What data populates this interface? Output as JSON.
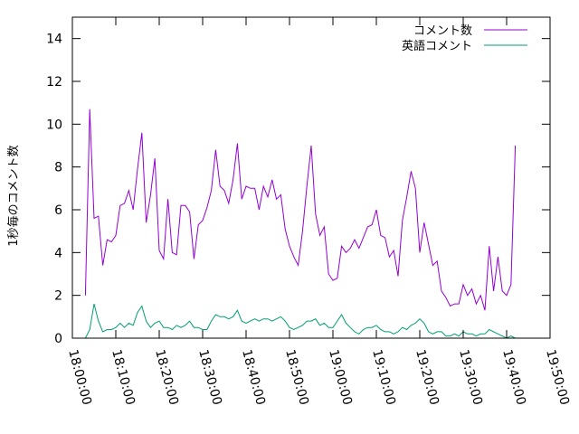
{
  "chart_data": {
    "type": "line",
    "title": "",
    "xlabel": "",
    "ylabel": "1秒毎のコメント数",
    "xlim": [
      "18:00:00",
      "19:50:00"
    ],
    "ylim": [
      0,
      15
    ],
    "xticks": [
      "18:00:00",
      "18:10:00",
      "18:20:00",
      "18:30:00",
      "18:40:00",
      "18:50:00",
      "19:00:00",
      "19:10:00",
      "19:20:00",
      "19:30:00",
      "19:40:00",
      "19:50:00"
    ],
    "yticks": [
      0,
      2,
      4,
      6,
      8,
      10,
      12,
      14
    ],
    "grid": false,
    "legend_position": "top-right",
    "colors": {
      "comments": "#9400d3",
      "english": "#009e73",
      "axes": "#000000"
    },
    "series": [
      {
        "name": "コメント数",
        "color": "#9400d3",
        "points": [
          [
            "18:03:00",
            2.0
          ],
          [
            "18:04:00",
            10.7
          ],
          [
            "18:05:00",
            5.6
          ],
          [
            "18:06:00",
            5.7
          ],
          [
            "18:07:00",
            3.4
          ],
          [
            "18:08:00",
            4.6
          ],
          [
            "18:09:00",
            4.5
          ],
          [
            "18:10:00",
            4.8
          ],
          [
            "18:11:00",
            6.2
          ],
          [
            "18:12:00",
            6.3
          ],
          [
            "18:13:00",
            6.9
          ],
          [
            "18:14:00",
            6.0
          ],
          [
            "18:15:00",
            7.9
          ],
          [
            "18:16:00",
            9.6
          ],
          [
            "18:17:00",
            5.4
          ],
          [
            "18:18:00",
            6.7
          ],
          [
            "18:19:00",
            8.4
          ],
          [
            "18:20:00",
            4.1
          ],
          [
            "18:21:00",
            3.7
          ],
          [
            "18:22:00",
            6.5
          ],
          [
            "18:23:00",
            4.0
          ],
          [
            "18:24:00",
            3.9
          ],
          [
            "18:25:00",
            6.2
          ],
          [
            "18:26:00",
            6.2
          ],
          [
            "18:27:00",
            5.9
          ],
          [
            "18:28:00",
            3.7
          ],
          [
            "18:29:00",
            5.3
          ],
          [
            "18:30:00",
            5.5
          ],
          [
            "18:31:00",
            6.1
          ],
          [
            "18:32:00",
            6.9
          ],
          [
            "18:33:00",
            8.8
          ],
          [
            "18:34:00",
            7.1
          ],
          [
            "18:35:00",
            6.9
          ],
          [
            "18:36:00",
            6.3
          ],
          [
            "18:37:00",
            7.4
          ],
          [
            "18:38:00",
            9.1
          ],
          [
            "18:39:00",
            6.5
          ],
          [
            "18:40:00",
            7.1
          ],
          [
            "18:41:00",
            7.0
          ],
          [
            "18:42:00",
            7.0
          ],
          [
            "18:43:00",
            6.0
          ],
          [
            "18:44:00",
            7.1
          ],
          [
            "18:45:00",
            6.6
          ],
          [
            "18:46:00",
            7.4
          ],
          [
            "18:47:00",
            6.5
          ],
          [
            "18:48:00",
            6.7
          ],
          [
            "18:49:00",
            5.1
          ],
          [
            "18:50:00",
            4.3
          ],
          [
            "18:51:00",
            3.8
          ],
          [
            "18:52:00",
            3.4
          ],
          [
            "18:53:00",
            5.0
          ],
          [
            "18:54:00",
            7.1
          ],
          [
            "18:55:00",
            9.0
          ],
          [
            "18:56:00",
            5.8
          ],
          [
            "18:57:00",
            4.8
          ],
          [
            "18:58:00",
            5.2
          ],
          [
            "18:59:00",
            3.0
          ],
          [
            "19:00:00",
            2.7
          ],
          [
            "19:01:00",
            2.8
          ],
          [
            "19:02:00",
            4.3
          ],
          [
            "19:03:00",
            4.0
          ],
          [
            "19:04:00",
            4.2
          ],
          [
            "19:05:00",
            4.6
          ],
          [
            "19:06:00",
            4.2
          ],
          [
            "19:07:00",
            4.7
          ],
          [
            "19:08:00",
            5.2
          ],
          [
            "19:09:00",
            5.3
          ],
          [
            "19:10:00",
            6.0
          ],
          [
            "19:11:00",
            4.8
          ],
          [
            "19:12:00",
            4.7
          ],
          [
            "19:13:00",
            3.8
          ],
          [
            "19:14:00",
            4.1
          ],
          [
            "19:15:00",
            2.9
          ],
          [
            "19:16:00",
            5.5
          ],
          [
            "19:17:00",
            6.6
          ],
          [
            "19:18:00",
            7.8
          ],
          [
            "19:19:00",
            7.0
          ],
          [
            "19:20:00",
            4.0
          ],
          [
            "19:21:00",
            5.4
          ],
          [
            "19:22:00",
            4.4
          ],
          [
            "19:23:00",
            3.4
          ],
          [
            "19:24:00",
            3.6
          ],
          [
            "19:25:00",
            2.2
          ],
          [
            "19:26:00",
            1.9
          ],
          [
            "19:27:00",
            1.5
          ],
          [
            "19:28:00",
            1.6
          ],
          [
            "19:29:00",
            1.6
          ],
          [
            "19:30:00",
            2.5
          ],
          [
            "19:31:00",
            2.0
          ],
          [
            "19:32:00",
            2.3
          ],
          [
            "19:33:00",
            1.6
          ],
          [
            "19:34:00",
            2.0
          ],
          [
            "19:35:00",
            1.3
          ],
          [
            "19:36:00",
            4.3
          ],
          [
            "19:37:00",
            2.2
          ],
          [
            "19:38:00",
            3.8
          ],
          [
            "19:39:00",
            2.2
          ],
          [
            "19:40:00",
            2.0
          ],
          [
            "19:41:00",
            2.5
          ],
          [
            "19:42:00",
            9.0
          ]
        ]
      },
      {
        "name": "英語コメント",
        "color": "#009e73",
        "points": [
          [
            "18:03:00",
            0.0
          ],
          [
            "18:04:00",
            0.4
          ],
          [
            "18:05:00",
            1.6
          ],
          [
            "18:06:00",
            0.8
          ],
          [
            "18:07:00",
            0.3
          ],
          [
            "18:08:00",
            0.4
          ],
          [
            "18:09:00",
            0.4
          ],
          [
            "18:10:00",
            0.5
          ],
          [
            "18:11:00",
            0.7
          ],
          [
            "18:12:00",
            0.5
          ],
          [
            "18:13:00",
            0.7
          ],
          [
            "18:14:00",
            0.6
          ],
          [
            "18:15:00",
            1.2
          ],
          [
            "18:16:00",
            1.5
          ],
          [
            "18:17:00",
            0.8
          ],
          [
            "18:18:00",
            0.5
          ],
          [
            "18:19:00",
            0.7
          ],
          [
            "18:20:00",
            0.8
          ],
          [
            "18:21:00",
            0.5
          ],
          [
            "18:22:00",
            0.5
          ],
          [
            "18:23:00",
            0.4
          ],
          [
            "18:24:00",
            0.6
          ],
          [
            "18:25:00",
            0.5
          ],
          [
            "18:26:00",
            0.6
          ],
          [
            "18:27:00",
            0.8
          ],
          [
            "18:28:00",
            0.5
          ],
          [
            "18:29:00",
            0.5
          ],
          [
            "18:30:00",
            0.4
          ],
          [
            "18:31:00",
            0.4
          ],
          [
            "18:32:00",
            0.8
          ],
          [
            "18:33:00",
            1.1
          ],
          [
            "18:34:00",
            1.0
          ],
          [
            "18:35:00",
            1.0
          ],
          [
            "18:36:00",
            0.9
          ],
          [
            "18:37:00",
            1.0
          ],
          [
            "18:38:00",
            1.3
          ],
          [
            "18:39:00",
            0.8
          ],
          [
            "18:40:00",
            0.7
          ],
          [
            "18:41:00",
            0.8
          ],
          [
            "18:42:00",
            0.9
          ],
          [
            "18:43:00",
            0.8
          ],
          [
            "18:44:00",
            0.9
          ],
          [
            "18:45:00",
            0.9
          ],
          [
            "18:46:00",
            0.8
          ],
          [
            "18:47:00",
            0.9
          ],
          [
            "18:48:00",
            1.0
          ],
          [
            "18:49:00",
            0.8
          ],
          [
            "18:50:00",
            0.5
          ],
          [
            "18:51:00",
            0.4
          ],
          [
            "18:52:00",
            0.5
          ],
          [
            "18:53:00",
            0.6
          ],
          [
            "18:54:00",
            0.8
          ],
          [
            "18:55:00",
            0.8
          ],
          [
            "18:56:00",
            0.9
          ],
          [
            "18:57:00",
            0.6
          ],
          [
            "18:58:00",
            0.7
          ],
          [
            "18:59:00",
            0.5
          ],
          [
            "19:00:00",
            0.5
          ],
          [
            "19:01:00",
            0.8
          ],
          [
            "19:02:00",
            1.1
          ],
          [
            "19:03:00",
            0.7
          ],
          [
            "19:04:00",
            0.5
          ],
          [
            "19:05:00",
            0.3
          ],
          [
            "19:06:00",
            0.2
          ],
          [
            "19:07:00",
            0.4
          ],
          [
            "19:08:00",
            0.5
          ],
          [
            "19:09:00",
            0.5
          ],
          [
            "19:10:00",
            0.6
          ],
          [
            "19:11:00",
            0.4
          ],
          [
            "19:12:00",
            0.3
          ],
          [
            "19:13:00",
            0.3
          ],
          [
            "19:14:00",
            0.2
          ],
          [
            "19:15:00",
            0.3
          ],
          [
            "19:16:00",
            0.5
          ],
          [
            "19:17:00",
            0.4
          ],
          [
            "19:18:00",
            0.6
          ],
          [
            "19:19:00",
            0.7
          ],
          [
            "19:20:00",
            0.9
          ],
          [
            "19:21:00",
            0.7
          ],
          [
            "19:22:00",
            0.3
          ],
          [
            "19:23:00",
            0.2
          ],
          [
            "19:24:00",
            0.3
          ],
          [
            "19:25:00",
            0.3
          ],
          [
            "19:26:00",
            0.1
          ],
          [
            "19:27:00",
            0.1
          ],
          [
            "19:28:00",
            0.2
          ],
          [
            "19:29:00",
            0.1
          ],
          [
            "19:30:00",
            0.3
          ],
          [
            "19:31:00",
            0.2
          ],
          [
            "19:32:00",
            0.2
          ],
          [
            "19:33:00",
            0.1
          ],
          [
            "19:34:00",
            0.2
          ],
          [
            "19:35:00",
            0.2
          ],
          [
            "19:36:00",
            0.4
          ],
          [
            "19:37:00",
            0.3
          ],
          [
            "19:38:00",
            0.2
          ],
          [
            "19:39:00",
            0.1
          ],
          [
            "19:40:00",
            0.0
          ],
          [
            "19:41:00",
            0.1
          ],
          [
            "19:42:00",
            0.0
          ]
        ]
      }
    ]
  }
}
